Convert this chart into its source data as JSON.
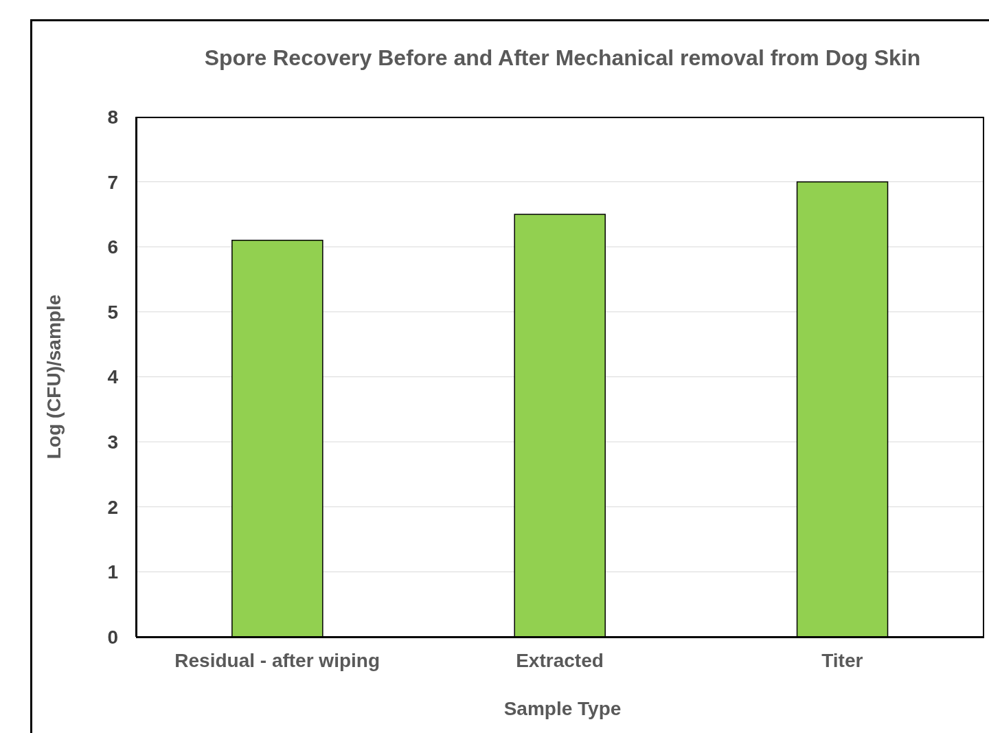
{
  "chart_data": {
    "type": "bar",
    "title": "Spore Recovery Before and After Mechanical removal from Dog Skin",
    "xlabel": "Sample Type",
    "ylabel": "Log (CFU)/sample",
    "categories": [
      "Residual - after wiping",
      "Extracted",
      "Titer"
    ],
    "values": [
      6.1,
      6.5,
      7.0
    ],
    "color": "#92d050",
    "ylim": [
      0,
      8
    ],
    "yticks": [
      0,
      1,
      2,
      3,
      4,
      5,
      6,
      7,
      8
    ],
    "grid": "y",
    "legend": false
  }
}
